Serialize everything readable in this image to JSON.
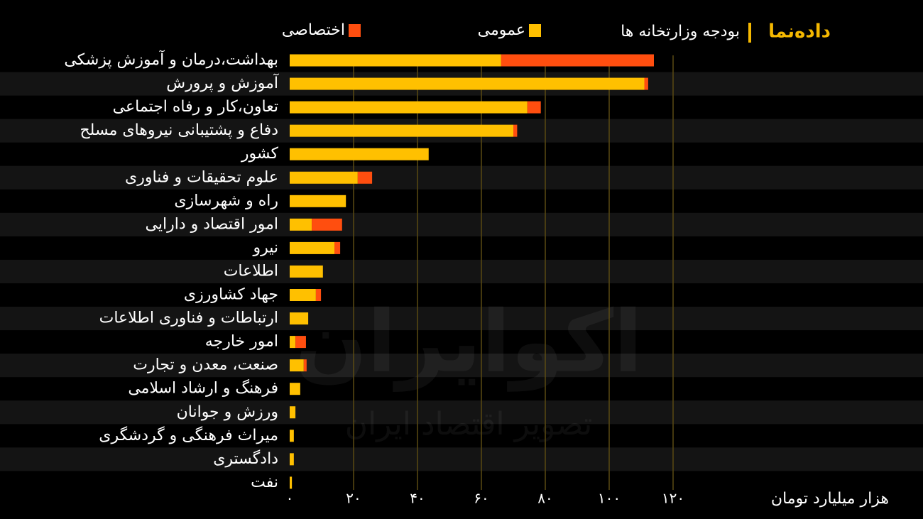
{
  "chart_data": {
    "type": "stacked_barh",
    "brand": "داده‌نما",
    "title": "بودجه وزارتخانه ها",
    "xlabel": "هزار میلیارد تومان",
    "watermark": [
      "اکوایران",
      "تصویر اقتصاد ایران"
    ],
    "categories": [
      "بهداشت،درمان و آموزش پزشکی",
      "آموزش و پرورش",
      "تعاون،کار و رفاه اجتماعی",
      "دفاع و پشتیبانی نیروهای مسلح",
      "کشور",
      "علوم تحقیقات و فناوری",
      "راه و شهرسازی",
      "امور اقتصاد و دارایی",
      "نیرو",
      "اطلاعات",
      "جهاد کشاورزی",
      "ارتباطات و فناوری اطلاعات",
      "امور خارجه",
      "صنعت، معدن و تجارت",
      "فرهنگ و ارشاد اسلامی",
      "ورزش و جوانان",
      "میراث فرهنگی و گردشگری",
      "دادگستری",
      "نفت"
    ],
    "series": [
      {
        "name": "عمومی",
        "color": "#ffc000",
        "values": [
          66.2,
          111,
          74.4,
          70,
          43.5,
          21.3,
          17.6,
          6.9,
          14,
          10.4,
          8.2,
          5.8,
          1.8,
          4.4,
          3.3,
          1.8,
          1.3,
          1.3,
          0.7
        ]
      },
      {
        "name": "اختصاصی",
        "color": "#ff4e0f",
        "values": [
          47.8,
          1.2,
          4.2,
          1.2,
          0,
          4.5,
          0,
          9.5,
          1.8,
          0,
          1.6,
          0,
          3.3,
          0.9,
          0,
          0,
          0,
          0,
          0
        ]
      }
    ],
    "xlim": [
      0,
      120
    ],
    "xticks": [
      {
        "value": 0,
        "label": "۰"
      },
      {
        "value": 20,
        "label": "۲۰"
      },
      {
        "value": 40,
        "label": "۴۰"
      },
      {
        "value": 60,
        "label": "۶۰"
      },
      {
        "value": 80,
        "label": "۸۰"
      },
      {
        "value": 100,
        "label": "۱۰۰"
      },
      {
        "value": 120,
        "label": "۱۲۰"
      }
    ],
    "grid": true
  }
}
